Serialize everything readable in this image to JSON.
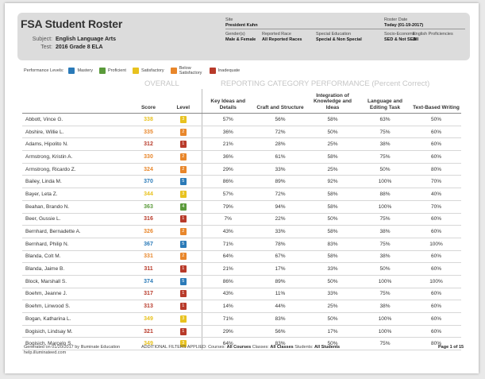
{
  "title": "FSA Student Roster",
  "subject_label": "Subject:",
  "subject_value": "English Language Arts",
  "test_label": "Test:",
  "test_value": "2016 Grade 8 ELA",
  "meta": {
    "site_label": "Site",
    "site_value": "President Kuhn",
    "roster_date_label": "Roster Date",
    "roster_date_value": "Today (01-19-2017)",
    "gender_label": "Gender(s)",
    "gender_value": "Male & Female",
    "race_label": "Reported Race",
    "race_value": "All Reported Races",
    "sped_label": "Special Education",
    "sped_value": "Special & Non Special",
    "socio_label": "Socio-Economic",
    "socio_value": "SED & Not SED",
    "ep_label": "English Proficiencies",
    "ep_value": "All"
  },
  "levels_label": "Performance Levels:",
  "levels": [
    {
      "label": "Mastery",
      "color": "#2a7ab8"
    },
    {
      "label": "Proficient",
      "color": "#5a9a3a"
    },
    {
      "label": "Satisfactory",
      "color": "#e8c21e"
    },
    {
      "label": "Below Satisfactory",
      "color": "#e8862a"
    },
    {
      "label": "Inadequate",
      "color": "#b83a2a"
    }
  ],
  "overall_header": "OVERALL",
  "reporting_header": "REPORTING CATEGORY PERFORMANCE (Percent Correct)",
  "columns": {
    "score": "Score",
    "level": "Level",
    "c1": "Key Ideas and Details",
    "c2": "Craft and Structure",
    "c3": "Integration of Knowledge and Ideas",
    "c4": "Language and Editing Task",
    "c5": "Text-Based Writing"
  },
  "rows": [
    {
      "name": "Abbott, Vince G.",
      "score": "338",
      "level": "3",
      "c1": "57%",
      "c2": "56%",
      "c3": "58%",
      "c4": "63%",
      "c5": "50%"
    },
    {
      "name": "Abshire, Willie L.",
      "score": "335",
      "level": "2",
      "c1": "36%",
      "c2": "72%",
      "c3": "50%",
      "c4": "75%",
      "c5": "60%"
    },
    {
      "name": "Adams, Hipolito N.",
      "score": "312",
      "level": "1",
      "c1": "21%",
      "c2": "28%",
      "c3": "25%",
      "c4": "38%",
      "c5": "60%"
    },
    {
      "name": "Armstrong, Kristin A.",
      "score": "330",
      "level": "2",
      "c1": "36%",
      "c2": "61%",
      "c3": "58%",
      "c4": "75%",
      "c5": "60%"
    },
    {
      "name": "Armstrong, Ricardo Z.",
      "score": "324",
      "level": "2",
      "c1": "29%",
      "c2": "33%",
      "c3": "25%",
      "c4": "50%",
      "c5": "80%"
    },
    {
      "name": "Bailey, Linda M.",
      "score": "370",
      "level": "5",
      "c1": "86%",
      "c2": "89%",
      "c3": "92%",
      "c4": "100%",
      "c5": "70%"
    },
    {
      "name": "Bayer, Leta Z.",
      "score": "344",
      "level": "3",
      "c1": "57%",
      "c2": "72%",
      "c3": "58%",
      "c4": "88%",
      "c5": "40%"
    },
    {
      "name": "Beahan, Brando N.",
      "score": "363",
      "level": "4",
      "c1": "79%",
      "c2": "94%",
      "c3": "58%",
      "c4": "100%",
      "c5": "70%"
    },
    {
      "name": "Beer, Gussie L.",
      "score": "316",
      "level": "1",
      "c1": "7%",
      "c2": "22%",
      "c3": "50%",
      "c4": "75%",
      "c5": "60%"
    },
    {
      "name": "Bernhard, Bernadette A.",
      "score": "326",
      "level": "2",
      "c1": "43%",
      "c2": "33%",
      "c3": "58%",
      "c4": "38%",
      "c5": "60%"
    },
    {
      "name": "Bernhard, Philip N.",
      "score": "367",
      "level": "5",
      "c1": "71%",
      "c2": "78%",
      "c3": "83%",
      "c4": "75%",
      "c5": "100%"
    },
    {
      "name": "Blanda, Colt M.",
      "score": "331",
      "level": "2",
      "c1": "64%",
      "c2": "67%",
      "c3": "58%",
      "c4": "38%",
      "c5": "60%"
    },
    {
      "name": "Blanda, Jaime B.",
      "score": "311",
      "level": "1",
      "c1": "21%",
      "c2": "17%",
      "c3": "33%",
      "c4": "50%",
      "c5": "60%"
    },
    {
      "name": "Block, Marshall S.",
      "score": "374",
      "level": "5",
      "c1": "86%",
      "c2": "89%",
      "c3": "50%",
      "c4": "100%",
      "c5": "100%"
    },
    {
      "name": "Boehm, Jeanne J.",
      "score": "317",
      "level": "1",
      "c1": "43%",
      "c2": "11%",
      "c3": "33%",
      "c4": "75%",
      "c5": "60%"
    },
    {
      "name": "Boehm, Linwood S.",
      "score": "313",
      "level": "1",
      "c1": "14%",
      "c2": "44%",
      "c3": "25%",
      "c4": "38%",
      "c5": "60%"
    },
    {
      "name": "Bogan, Katharina L.",
      "score": "349",
      "level": "3",
      "c1": "71%",
      "c2": "83%",
      "c3": "50%",
      "c4": "100%",
      "c5": "60%"
    },
    {
      "name": "Bogisich, Lindsay M.",
      "score": "321",
      "level": "1",
      "c1": "29%",
      "c2": "56%",
      "c3": "17%",
      "c4": "100%",
      "c5": "60%"
    },
    {
      "name": "Bogisich, Marcelo S.",
      "score": "349",
      "level": "3",
      "c1": "64%",
      "c2": "83%",
      "c3": "50%",
      "c4": "75%",
      "c5": "80%"
    }
  ],
  "level_colors": {
    "1": "#b83a2a",
    "2": "#e8862a",
    "3": "#e8c21e",
    "4": "#5a9a3a",
    "5": "#2a7ab8"
  },
  "footer": {
    "generated": "Generated on 01/20/2017 by Illuminate Education",
    "help": "help.illuminateed.com",
    "filters_label": "ADDITIONAL FILTERS APPLIED:",
    "courses_label": "Courses:",
    "courses_value": "All Courses",
    "classes_label": "Classes:",
    "classes_value": "All Classes",
    "students_label": "Students:",
    "students_value": "All Students",
    "page": "Page 1 of 15"
  }
}
